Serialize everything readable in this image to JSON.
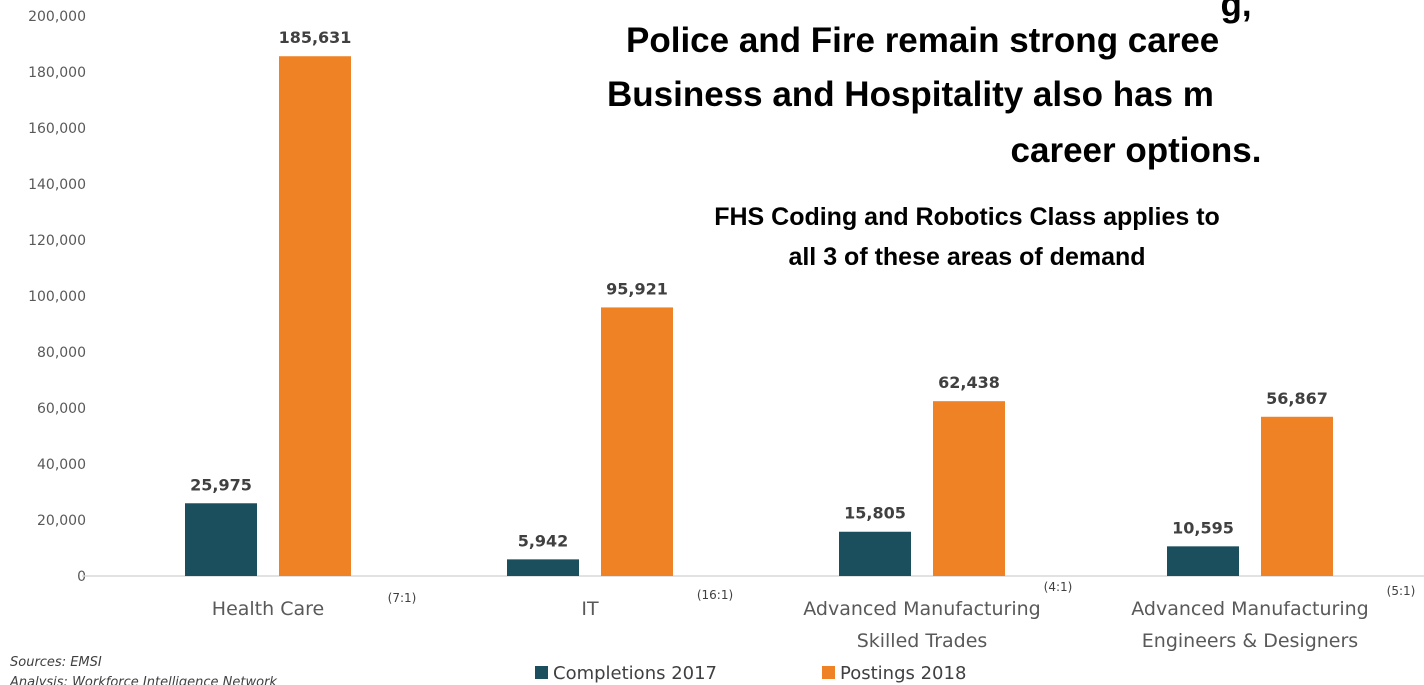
{
  "chart_data": {
    "type": "bar",
    "categories": [
      "Health Care",
      "IT",
      "Advanced Manufacturing Skilled Trades",
      "Advanced Manufacturing Engineers & Designers"
    ],
    "category_lines": [
      [
        "Health Care"
      ],
      [
        "IT"
      ],
      [
        "Advanced Manufacturing",
        "Skilled Trades"
      ],
      [
        "Advanced Manufacturing",
        "Engineers & Designers"
      ]
    ],
    "ratios": [
      "(7:1)",
      "(16:1)",
      "(4:1)",
      "(5:1)"
    ],
    "series": [
      {
        "name": "Completions 2017",
        "color": "#1c4f5e",
        "values": [
          25975,
          5942,
          15805,
          10595
        ],
        "labels": [
          "25,975",
          "5,942",
          "15,805",
          "10,595"
        ]
      },
      {
        "name": "Postings 2018",
        "color": "#f08226",
        "values": [
          185631,
          95921,
          62438,
          56867
        ],
        "labels": [
          "185,631",
          "95,921",
          "62,438",
          "56,867"
        ]
      }
    ],
    "ylim": [
      0,
      200000
    ],
    "yticks": [
      0,
      20000,
      40000,
      60000,
      80000,
      100000,
      120000,
      140000,
      160000,
      180000,
      200000
    ],
    "ytick_labels": [
      "0",
      "20,000",
      "40,000",
      "60,000",
      "80,000",
      "100,000",
      "120,000",
      "140,000",
      "160,000",
      "180,000",
      "200,000"
    ],
    "legend_position": "bottom",
    "grid": false
  },
  "headline": {
    "lines": [
      "Police and Fire remain strong caree",
      "Business and Hospitality also has m",
      "career options."
    ],
    "partial_top": "g,"
  },
  "subheadline": {
    "lines": [
      "FHS Coding and Robotics Class applies to",
      "all 3 of these areas of demand"
    ]
  },
  "sources": [
    "Sources: EMSI",
    "Analysis: Workforce Intelligence Network"
  ]
}
